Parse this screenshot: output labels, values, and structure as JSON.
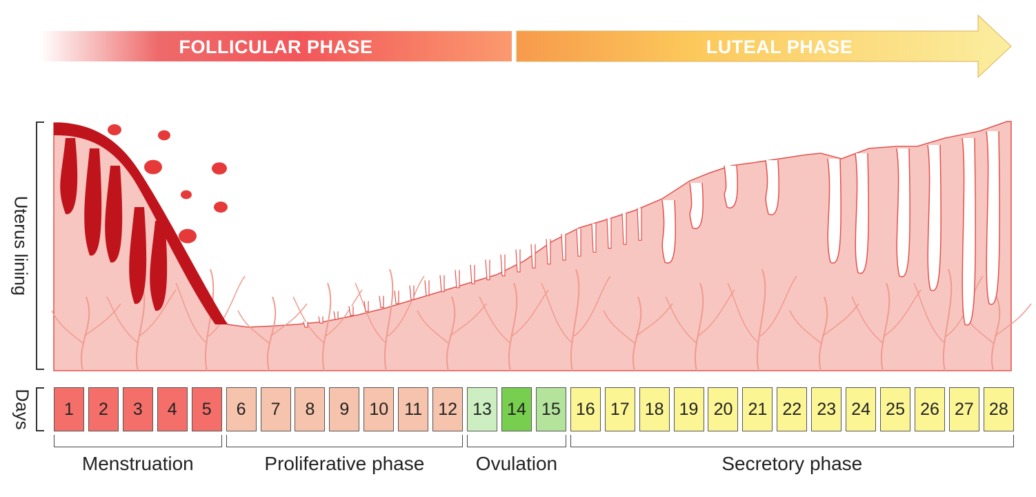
{
  "phases": {
    "follicular": "FOLLICULAR PHASE",
    "luteal": "LUTEAL PHASE"
  },
  "axis": {
    "y_label": "Uterus lining",
    "days_label": "Days"
  },
  "days": [
    {
      "label": "1",
      "stage": "menstruation"
    },
    {
      "label": "2",
      "stage": "menstruation"
    },
    {
      "label": "3",
      "stage": "menstruation"
    },
    {
      "label": "4",
      "stage": "menstruation"
    },
    {
      "label": "5",
      "stage": "menstruation"
    },
    {
      "label": "6",
      "stage": "proliferative"
    },
    {
      "label": "7",
      "stage": "proliferative"
    },
    {
      "label": "8",
      "stage": "proliferative"
    },
    {
      "label": "9",
      "stage": "proliferative"
    },
    {
      "label": "10",
      "stage": "proliferative"
    },
    {
      "label": "11",
      "stage": "proliferative"
    },
    {
      "label": "12",
      "stage": "proliferative"
    },
    {
      "label": "13",
      "stage": "ovulation-light"
    },
    {
      "label": "14",
      "stage": "ovulation-peak"
    },
    {
      "label": "15",
      "stage": "ovulation-light2"
    },
    {
      "label": "16",
      "stage": "secretory"
    },
    {
      "label": "17",
      "stage": "secretory"
    },
    {
      "label": "18",
      "stage": "secretory"
    },
    {
      "label": "19",
      "stage": "secretory"
    },
    {
      "label": "20",
      "stage": "secretory"
    },
    {
      "label": "21",
      "stage": "secretory"
    },
    {
      "label": "22",
      "stage": "secretory"
    },
    {
      "label": "23",
      "stage": "secretory"
    },
    {
      "label": "24",
      "stage": "secretory"
    },
    {
      "label": "25",
      "stage": "secretory"
    },
    {
      "label": "26",
      "stage": "secretory"
    },
    {
      "label": "27",
      "stage": "secretory"
    },
    {
      "label": "28",
      "stage": "secretory"
    }
  ],
  "stage_colors": {
    "menstruation": "#f46f6a",
    "proliferative": "#f6c3ac",
    "ovulation-light": "#cdeec0",
    "ovulation-peak": "#78cf4f",
    "ovulation-light2": "#b4e39c",
    "secretory": "#fbf594"
  },
  "groups": [
    {
      "label": "Menstruation",
      "from": 1,
      "to": 5
    },
    {
      "label": "Proliferative phase",
      "from": 6,
      "to": 12
    },
    {
      "label": "Ovulation",
      "from": 13,
      "to": 15
    },
    {
      "label": "Secretory phase",
      "from": 16,
      "to": 28
    }
  ],
  "colors": {
    "lining_fill": "#f8c6c0",
    "lining_edge": "#e2504c",
    "vessel": "#f09a8f",
    "blood_dark": "#c0141c",
    "blood_light": "#e63a3a"
  }
}
